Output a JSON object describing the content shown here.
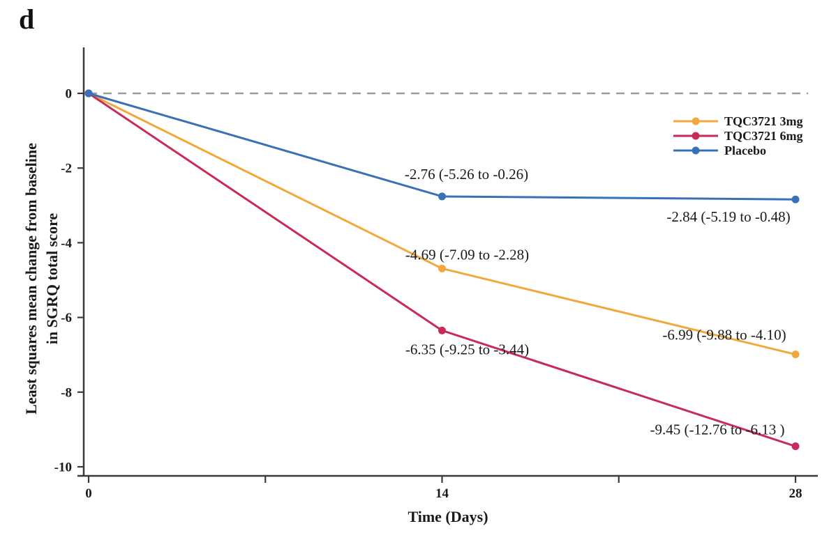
{
  "panel_label": "d",
  "colors": {
    "axis": "#3a3a3a",
    "text": "#1a1a1a",
    "tick_label": "#333333",
    "dashed_line": "#9b9b9b",
    "background": "#ffffff"
  },
  "chart_data": {
    "type": "line",
    "title": "",
    "xlabel": "Time (Days)",
    "ylabel": "Least squares mean change from baseline in SGRQ total score",
    "ylabel_lines": [
      "Least squares mean change from baseline",
      "in SGRQ total score"
    ],
    "x": [
      0,
      14,
      28
    ],
    "xlim": [
      0,
      28
    ],
    "x_ticks_labeled": [
      0,
      14,
      28
    ],
    "x_ticks_minor": [
      7,
      21
    ],
    "y_ticks": [
      0,
      -2,
      -4,
      -6,
      -8,
      -10
    ],
    "ylim": [
      -10.5,
      0.65
    ],
    "grid": false,
    "zero_reference_line": {
      "y": 0,
      "style": "dashed",
      "color": "#9b9b9b"
    },
    "legend_position": "top-right-inside",
    "series": [
      {
        "name": "TQC3721 3mg",
        "color": "#F2A83C",
        "values": [
          0,
          -4.69,
          -6.99
        ],
        "point_labels": [
          "",
          "-4.69 (-7.09 to -2.28)",
          "-6.99 (-9.88 to -4.10)"
        ],
        "label_offsets": [
          [
            0,
            0
          ],
          [
            36,
            -13
          ],
          [
            -102,
            -21
          ]
        ]
      },
      {
        "name": "TQC3721 6mg",
        "color": "#C92A56",
        "values": [
          0,
          -6.35,
          -9.45
        ],
        "point_labels": [
          "",
          "-6.35 (-9.25 to -3.44)",
          "-9.45 (-12.76 to -6.13 )"
        ],
        "label_offsets": [
          [
            0,
            0
          ],
          [
            36,
            34
          ],
          [
            -112,
            -17
          ]
        ]
      },
      {
        "name": "Placebo",
        "color": "#3971B5",
        "values": [
          0,
          -2.76,
          -2.84
        ],
        "point_labels": [
          "",
          "-2.76 (-5.26 to -0.26)",
          "-2.84 (-5.19 to -0.48)"
        ],
        "label_offsets": [
          [
            0,
            0
          ],
          [
            35,
            -25
          ],
          [
            -96,
            32
          ]
        ]
      }
    ]
  }
}
